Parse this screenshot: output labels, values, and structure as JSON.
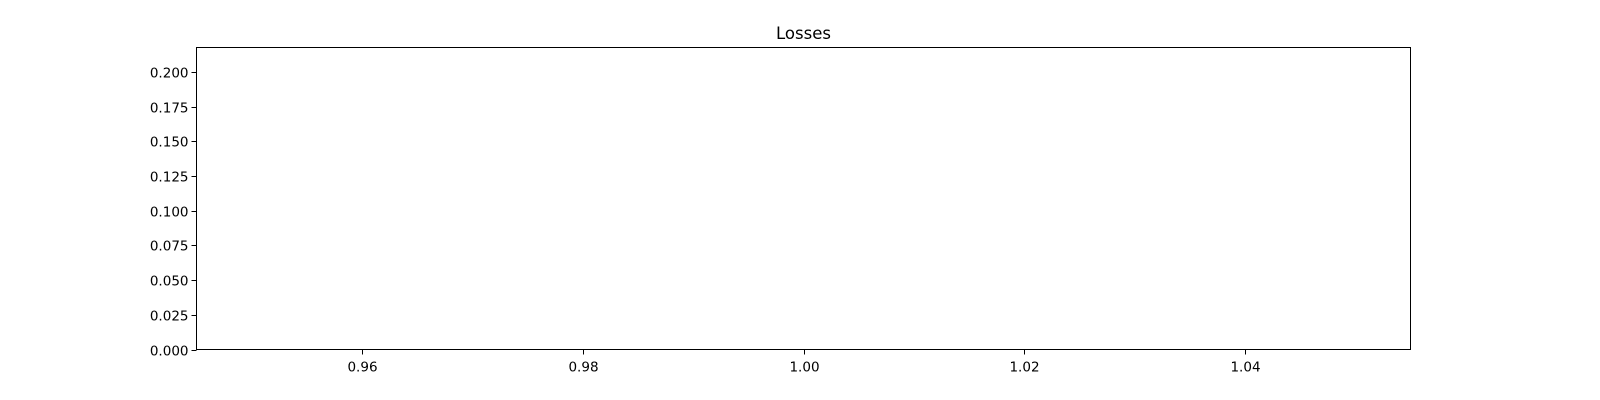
{
  "chart_data": {
    "type": "line",
    "title": "Losses",
    "xlabel": "",
    "ylabel": "",
    "xlim": [
      0.945,
      1.055
    ],
    "ylim": [
      0,
      0.2175
    ],
    "x_ticks": [
      0.96,
      0.98,
      1.0,
      1.02,
      1.04
    ],
    "x_tick_labels": [
      "0.96",
      "0.98",
      "1.00",
      "1.02",
      "1.04"
    ],
    "y_ticks": [
      0.0,
      0.025,
      0.05,
      0.075,
      0.1,
      0.125,
      0.15,
      0.175,
      0.2
    ],
    "y_tick_labels": [
      "0.000",
      "0.025",
      "0.050",
      "0.075",
      "0.100",
      "0.125",
      "0.150",
      "0.175",
      "0.200"
    ],
    "series": [],
    "grid": false,
    "colors": {
      "axes": "#000000",
      "background": "#ffffff"
    }
  }
}
